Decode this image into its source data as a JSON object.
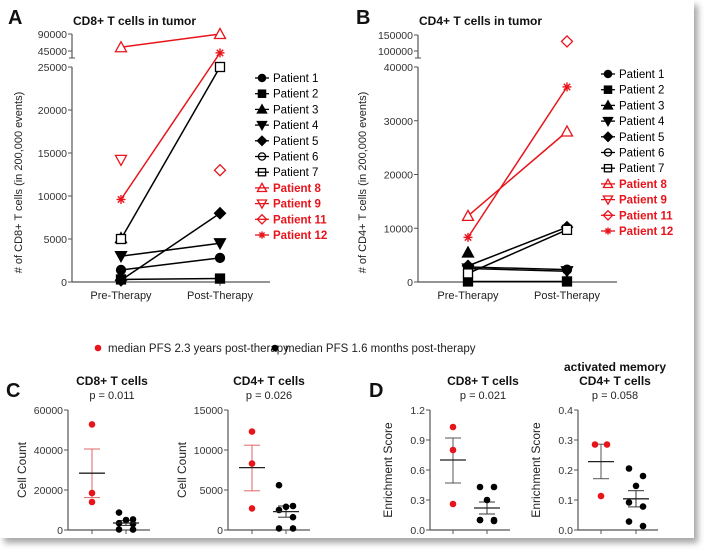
{
  "colors": {
    "good": "#e8141b",
    "poor": "#000000",
    "axis": "#555555",
    "sem_good": "#e06666"
  },
  "legend_groups": [
    {
      "label": "median PFS 2.3 years post-therapy",
      "color": "#e8141b"
    },
    {
      "label": "median PFS 1.6 months post-therapy",
      "color": "#000000"
    }
  ],
  "chart_data": [
    {
      "panel": "A",
      "type": "line",
      "title": "CD8+ T cells in tumor",
      "xlabel": "",
      "ylabel": "# of CD8+ T cells (in 200,000 events)",
      "categories": [
        "Pre-Therapy",
        "Post-Therapy"
      ],
      "ylim": [
        0,
        25000
      ],
      "yticks": [
        0,
        5000,
        10000,
        15000,
        20000,
        25000
      ],
      "broken_upper_ticks": [
        45000,
        90000
      ],
      "legend_position": "right",
      "series": [
        {
          "name": "Patient 1",
          "marker": "circle",
          "color": "#000000",
          "filled": true,
          "values": [
            1400,
            2800
          ]
        },
        {
          "name": "Patient 2",
          "marker": "square",
          "color": "#000000",
          "filled": true,
          "values": [
            300,
            400
          ]
        },
        {
          "name": "Patient 3",
          "marker": "triangle-up",
          "color": "#000000",
          "filled": true,
          "values": [
            5100,
            null
          ]
        },
        {
          "name": "Patient 4",
          "marker": "triangle-down",
          "color": "#000000",
          "filled": true,
          "values": [
            3000,
            4500
          ]
        },
        {
          "name": "Patient 5",
          "marker": "diamond",
          "color": "#000000",
          "filled": true,
          "values": [
            200,
            8000
          ]
        },
        {
          "name": "Patient 6",
          "marker": "circle",
          "color": "#000000",
          "filled": false,
          "values": [
            null,
            null
          ]
        },
        {
          "name": "Patient 7",
          "marker": "square",
          "color": "#000000",
          "filled": false,
          "values": [
            5000,
            25000
          ]
        },
        {
          "name": "Patient 8",
          "marker": "triangle-up",
          "color": "#e8141b",
          "filled": false,
          "values": [
            55000,
            90000
          ]
        },
        {
          "name": "Patient 9",
          "marker": "triangle-down",
          "color": "#e8141b",
          "filled": false,
          "values": [
            14200,
            null
          ]
        },
        {
          "name": "Patient 11",
          "marker": "diamond",
          "color": "#e8141b",
          "filled": false,
          "values": [
            null,
            13000
          ]
        },
        {
          "name": "Patient 12",
          "marker": "asterisk",
          "color": "#e8141b",
          "filled": true,
          "values": [
            9600,
            40000
          ]
        }
      ]
    },
    {
      "panel": "B",
      "type": "line",
      "title": "CD4+ T cells in tumor",
      "xlabel": "",
      "ylabel": "# of CD4+ T cells (in 200,000 events)",
      "categories": [
        "Pre-Therapy",
        "Post-Therapy"
      ],
      "ylim": [
        0,
        40000
      ],
      "yticks": [
        0,
        10000,
        20000,
        30000,
        40000
      ],
      "broken_upper_ticks": [
        100000,
        150000
      ],
      "legend_position": "right",
      "series": [
        {
          "name": "Patient 1",
          "marker": "circle",
          "color": "#000000",
          "filled": true,
          "values": [
            2800,
            2300
          ]
        },
        {
          "name": "Patient 2",
          "marker": "square",
          "color": "#000000",
          "filled": true,
          "values": [
            100,
            100
          ]
        },
        {
          "name": "Patient 3",
          "marker": "triangle-up",
          "color": "#000000",
          "filled": true,
          "values": [
            5500,
            null
          ]
        },
        {
          "name": "Patient 4",
          "marker": "triangle-down",
          "color": "#000000",
          "filled": true,
          "values": [
            2500,
            2000
          ]
        },
        {
          "name": "Patient 5",
          "marker": "diamond",
          "color": "#000000",
          "filled": true,
          "values": [
            3000,
            10200
          ]
        },
        {
          "name": "Patient 6",
          "marker": "circle",
          "color": "#000000",
          "filled": false,
          "values": [
            null,
            null
          ]
        },
        {
          "name": "Patient 7",
          "marker": "square",
          "color": "#000000",
          "filled": false,
          "values": [
            1600,
            9700
          ]
        },
        {
          "name": "Patient 8",
          "marker": "triangle-up",
          "color": "#e8141b",
          "filled": false,
          "values": [
            12300,
            28000
          ]
        },
        {
          "name": "Patient 9",
          "marker": "triangle-down",
          "color": "#e8141b",
          "filled": false,
          "values": [
            null,
            null
          ]
        },
        {
          "name": "Patient 11",
          "marker": "diamond",
          "color": "#e8141b",
          "filled": false,
          "values": [
            null,
            130000
          ]
        },
        {
          "name": "Patient 12",
          "marker": "asterisk",
          "color": "#e8141b",
          "filled": true,
          "values": [
            8300,
            36300
          ]
        }
      ]
    },
    {
      "panel": "C",
      "type": "scatter",
      "title": "CD8+ T cells",
      "subtitle": "p = 0.011",
      "ylabel": "Cell Count",
      "ylim": [
        0,
        60000
      ],
      "yticks": [
        0,
        20000,
        40000,
        60000
      ],
      "groups": [
        {
          "name": "median PFS 2.3 years post-therapy",
          "color": "#e8141b",
          "values": [
            52800,
            18500,
            14000
          ],
          "mean": 28400,
          "sem": [
            16200,
            40500
          ]
        },
        {
          "name": "median PFS 1.6 months post-therapy",
          "color": "#000000",
          "values": [
            8700,
            5300,
            5000,
            3400,
            3000,
            300,
            200
          ],
          "mean": 3500,
          "sem": [
            2300,
            4700
          ]
        }
      ]
    },
    {
      "panel": "C",
      "type": "scatter",
      "title": "CD4+ T cells",
      "subtitle": "p = 0.026",
      "ylabel": "Cell Count",
      "ylim": [
        0,
        15000
      ],
      "yticks": [
        0,
        5000,
        10000,
        15000
      ],
      "groups": [
        {
          "name": "median PFS 2.3 years post-therapy",
          "color": "#e8141b",
          "values": [
            12300,
            8300,
            2700
          ],
          "mean": 7800,
          "sem": [
            4900,
            10600
          ]
        },
        {
          "name": "median PFS 1.6 months post-therapy",
          "color": "#000000",
          "values": [
            5600,
            3000,
            2900,
            2500,
            1600,
            200,
            200
          ],
          "mean": 2300,
          "sem": [
            1600,
            3000
          ]
        }
      ]
    },
    {
      "panel": "D",
      "type": "scatter",
      "title": "CD8+ T cells",
      "subtitle": "p = 0.021",
      "ylabel": "Enrichment Score",
      "ylim": [
        0,
        1.2
      ],
      "yticks": [
        0.0,
        0.3,
        0.6,
        0.9,
        1.2
      ],
      "groups": [
        {
          "name": "median PFS 2.3 years post-therapy",
          "color": "#e8141b",
          "values": [
            1.03,
            0.8,
            0.26
          ],
          "mean": 0.7,
          "sem": [
            0.47,
            0.92
          ]
        },
        {
          "name": "median PFS 1.6 months post-therapy",
          "color": "#000000",
          "values": [
            0.43,
            0.43,
            0.3,
            0.1,
            0.09,
            0.1,
            0.1
          ],
          "mean": 0.22,
          "sem": [
            0.16,
            0.28
          ]
        }
      ]
    },
    {
      "panel": "D",
      "type": "scatter",
      "title": "activated memory CD4+ T cells",
      "title_lines": [
        "activated memory",
        "CD4+ T cells"
      ],
      "subtitle": "p = 0.058",
      "ylabel": "Enrichment Score",
      "ylim": [
        0,
        0.4
      ],
      "yticks": [
        0.0,
        0.1,
        0.2,
        0.3,
        0.4
      ],
      "groups": [
        {
          "name": "median PFS 2.3 years post-therapy",
          "color": "#e8141b",
          "values": [
            0.285,
            0.285,
            0.113
          ],
          "mean": 0.228,
          "sem": [
            0.171,
            0.286
          ]
        },
        {
          "name": "median PFS 1.6 months post-therapy",
          "color": "#000000",
          "values": [
            0.205,
            0.18,
            0.147,
            0.092,
            0.078,
            0.028,
            0.013
          ],
          "mean": 0.104,
          "sem": [
            0.077,
            0.131
          ]
        }
      ]
    }
  ],
  "panel_labels": [
    "A",
    "B",
    "C",
    "D"
  ]
}
